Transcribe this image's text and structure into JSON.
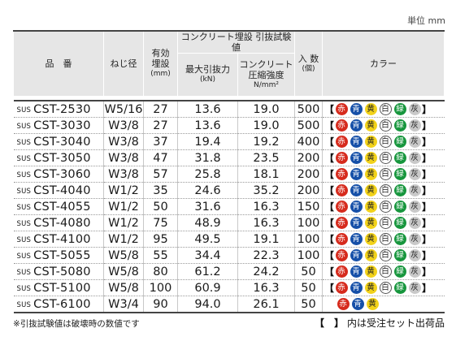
{
  "unit_label": "単位 mm",
  "headers": {
    "model": "品　番",
    "thread": "ねじ径",
    "embed_depth": [
      "有効",
      "埋設",
      "(mm)"
    ],
    "group_title": "コンクリート埋設 引抜試験値",
    "max_pull": [
      "最大引抜力",
      "(kN)"
    ],
    "concrete_strength": [
      "コンクリート",
      "圧縮強度",
      "N/mm²"
    ],
    "quantity": [
      "入 数",
      "(個)"
    ],
    "color": "カラー"
  },
  "rows": [
    {
      "prefix": "SUS",
      "model": "CST-2530",
      "thread": "W5/16",
      "depth": "27",
      "pull": "13.6",
      "strength": "19.0",
      "qty": "500"
    },
    {
      "prefix": "SUS",
      "model": "CST-3030",
      "thread": "W3/8",
      "depth": "27",
      "pull": "13.6",
      "strength": "19.0",
      "qty": "500"
    },
    {
      "prefix": "SUS",
      "model": "CST-3040",
      "thread": "W3/8",
      "depth": "37",
      "pull": "19.4",
      "strength": "19.2",
      "qty": "400"
    },
    {
      "prefix": "SUS",
      "model": "CST-3050",
      "thread": "W3/8",
      "depth": "47",
      "pull": "31.8",
      "strength": "23.5",
      "qty": "200"
    },
    {
      "prefix": "SUS",
      "model": "CST-3060",
      "thread": "W3/8",
      "depth": "57",
      "pull": "25.8",
      "strength": "18.1",
      "qty": "200"
    },
    {
      "prefix": "SUS",
      "model": "CST-4040",
      "thread": "W1/2",
      "depth": "35",
      "pull": "24.6",
      "strength": "35.2",
      "qty": "200"
    },
    {
      "prefix": "SUS",
      "model": "CST-4055",
      "thread": "W1/2",
      "depth": "50",
      "pull": "31.6",
      "strength": "16.3",
      "qty": "150"
    },
    {
      "prefix": "SUS",
      "model": "CST-4080",
      "thread": "W1/2",
      "depth": "75",
      "pull": "48.9",
      "strength": "16.3",
      "qty": "100"
    },
    {
      "prefix": "SUS",
      "model": "CST-4100",
      "thread": "W1/2",
      "depth": "95",
      "pull": "49.5",
      "strength": "19.1",
      "qty": "100"
    },
    {
      "prefix": "SUS",
      "model": "CST-5055",
      "thread": "W5/8",
      "depth": "55",
      "pull": "34.4",
      "strength": "22.3",
      "qty": "100"
    },
    {
      "prefix": "SUS",
      "model": "CST-5080",
      "thread": "W5/8",
      "depth": "80",
      "pull": "61.2",
      "strength": "24.2",
      "qty": "50"
    },
    {
      "prefix": "SUS",
      "model": "CST-5100",
      "thread": "W5/8",
      "depth": "100",
      "pull": "60.9",
      "strength": "16.3",
      "qty": "50"
    },
    {
      "prefix": "SUS",
      "model": "CST-6100",
      "thread": "W3/4",
      "depth": "90",
      "pull": "94.0",
      "strength": "26.1",
      "qty": "50"
    }
  ],
  "colors": [
    {
      "label": "赤",
      "name": "red",
      "hex": "#d62a1c"
    },
    {
      "label": "青",
      "name": "blue",
      "hex": "#1650a8"
    },
    {
      "label": "黄",
      "name": "yellow",
      "hex": "#f2d21a"
    },
    {
      "label": "白",
      "name": "white",
      "hex": "#ffffff"
    },
    {
      "label": "緑",
      "name": "green",
      "hex": "#17963d"
    },
    {
      "label": "灰",
      "name": "gray",
      "hex": "#c9c9c9"
    }
  ],
  "last_row_colors": [
    {
      "label": "赤",
      "name": "red",
      "hex": "#d62a1c"
    },
    {
      "label": "青",
      "name": "blue",
      "hex": "#1650a8"
    },
    {
      "label": "黄",
      "name": "yellow",
      "hex": "#f2d21a"
    }
  ],
  "bracket_open": "【",
  "bracket_close": "】",
  "footnote_left": "※引抜試験値は破壊時の数値です",
  "footnote_right_bracket": "【　】",
  "footnote_right_text": "内は受注セット出荷品"
}
